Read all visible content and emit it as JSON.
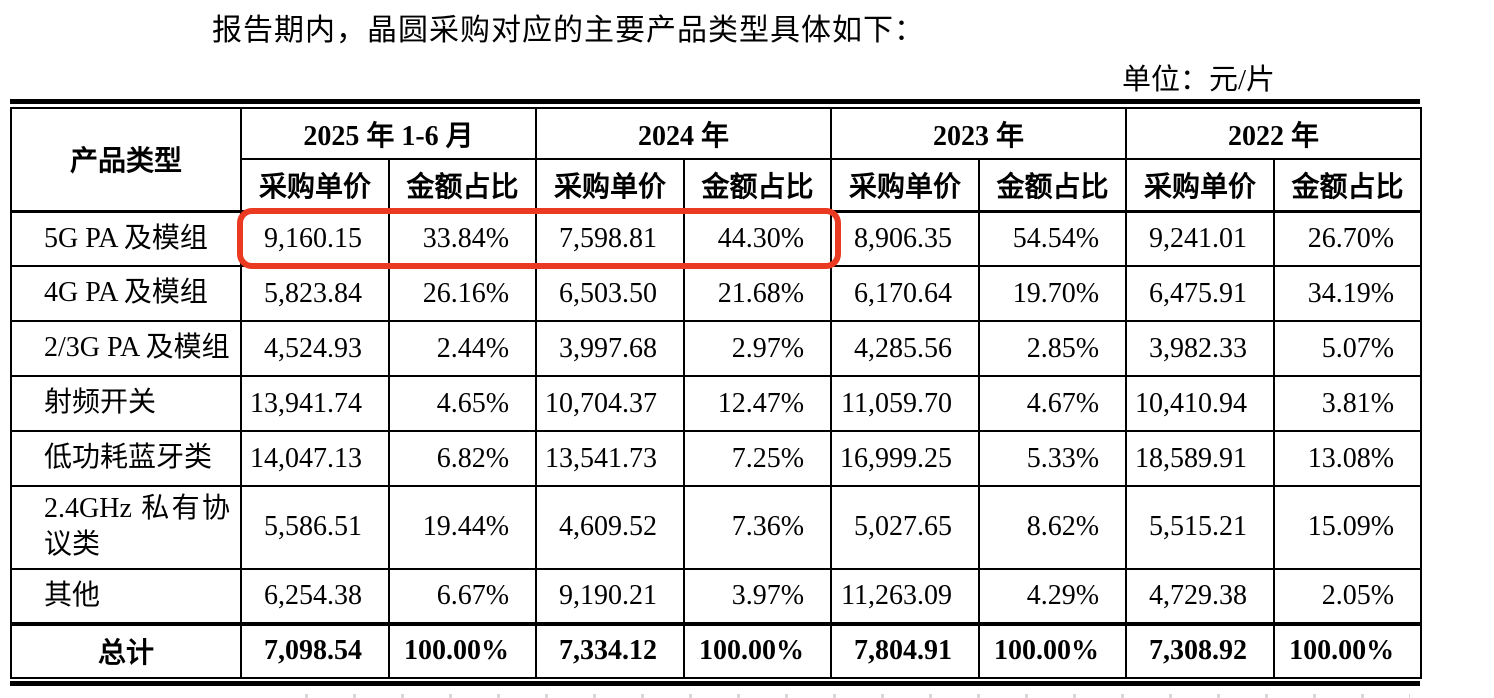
{
  "page": {
    "intro_text": "报告期内，晶圆采购对应的主要产品类型具体如下：",
    "unit_label": "单位：元/片"
  },
  "table": {
    "product_type_header": "产品类型",
    "period_groups": [
      {
        "label": "2025 年 1-6 月"
      },
      {
        "label": "2024 年"
      },
      {
        "label": "2023 年"
      },
      {
        "label": "2022 年"
      }
    ],
    "sub_headers": {
      "unit_price": "采购单价",
      "amount_share": "金额占比"
    },
    "rows": [
      {
        "product": "5G PA 及模组",
        "cells": [
          "9,160.15",
          "33.84%",
          "7,598.81",
          "44.30%",
          "8,906.35",
          "54.54%",
          "9,241.01",
          "26.70%"
        ]
      },
      {
        "product": "4G PA 及模组",
        "cells": [
          "5,823.84",
          "26.16%",
          "6,503.50",
          "21.68%",
          "6,170.64",
          "19.70%",
          "6,475.91",
          "34.19%"
        ]
      },
      {
        "product": "2/3G PA 及模组",
        "cells": [
          "4,524.93",
          "2.44%",
          "3,997.68",
          "2.97%",
          "4,285.56",
          "2.85%",
          "3,982.33",
          "5.07%"
        ]
      },
      {
        "product": "射频开关",
        "cells": [
          "13,941.74",
          "4.65%",
          "10,704.37",
          "12.47%",
          "11,059.70",
          "4.67%",
          "10,410.94",
          "3.81%"
        ]
      },
      {
        "product": "低功耗蓝牙类",
        "cells": [
          "14,047.13",
          "6.82%",
          "13,541.73",
          "7.25%",
          "16,999.25",
          "5.33%",
          "18,589.91",
          "13.08%"
        ]
      },
      {
        "product": "2.4GHz 私有协议类",
        "cells": [
          "5,586.51",
          "19.44%",
          "4,609.52",
          "7.36%",
          "5,027.65",
          "8.62%",
          "5,515.21",
          "15.09%"
        ]
      },
      {
        "product": "其他",
        "cells": [
          "6,254.38",
          "6.67%",
          "9,190.21",
          "3.97%",
          "11,263.09",
          "4.29%",
          "4,729.38",
          "2.05%"
        ]
      }
    ],
    "total_row": {
      "product": "总计",
      "cells": [
        "7,098.54",
        "100.00%",
        "7,334.12",
        "100.00%",
        "7,804.91",
        "100.00%",
        "7,308.92",
        "100.00%"
      ]
    }
  },
  "annotation": {
    "type": "red-rounded-rectangle",
    "color": "#ea3a21",
    "covers": "5G PA 及模组 row — 2025年1-6月 and 2024年 采购单价/金额占比 cells"
  }
}
